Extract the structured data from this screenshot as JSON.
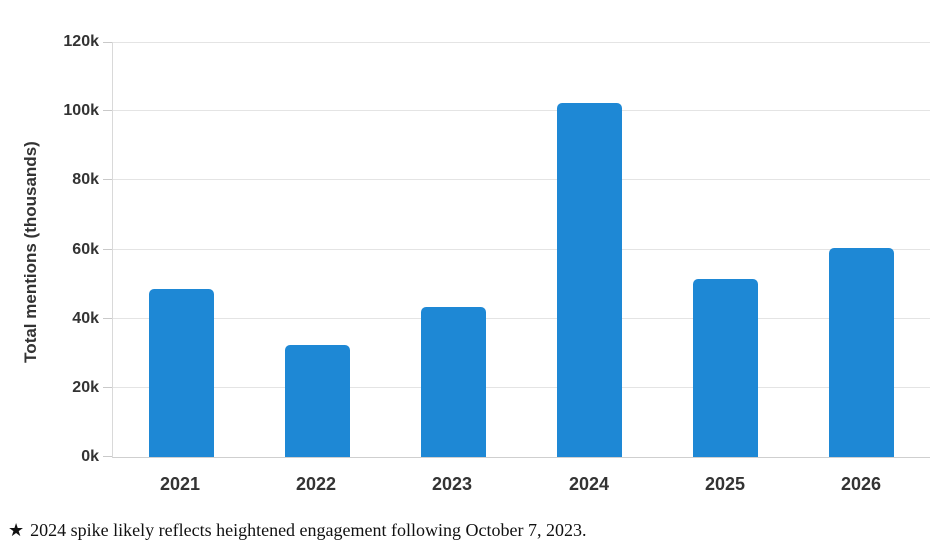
{
  "chart_data": {
    "type": "bar",
    "categories": [
      "2021",
      "2022",
      "2023",
      "2024",
      "2025",
      "2026"
    ],
    "values": [
      48.5,
      32.5,
      43.5,
      102.5,
      51.5,
      60.5
    ],
    "xlabel": "",
    "ylabel": "Total mentions (thousands)",
    "ylim": [
      0,
      120
    ],
    "yticks": [
      0,
      20,
      40,
      60,
      80,
      100,
      120
    ],
    "ytick_labels": [
      "0k",
      "20k",
      "40k",
      "60k",
      "80k",
      "100k",
      "120k"
    ],
    "bar_color": "#1E88D5",
    "grid": true,
    "legend_position": "none"
  },
  "footnote": {
    "marker": "★",
    "text": "2024 spike likely reflects heightened engagement following October 7, 2023."
  },
  "colors": {
    "bar": "#1E88D5",
    "gridline": "#e4e4e4",
    "axis_line": "#cfcfcf",
    "label_text": "#333333",
    "footnote_text": "#111111",
    "background": "#ffffff"
  }
}
